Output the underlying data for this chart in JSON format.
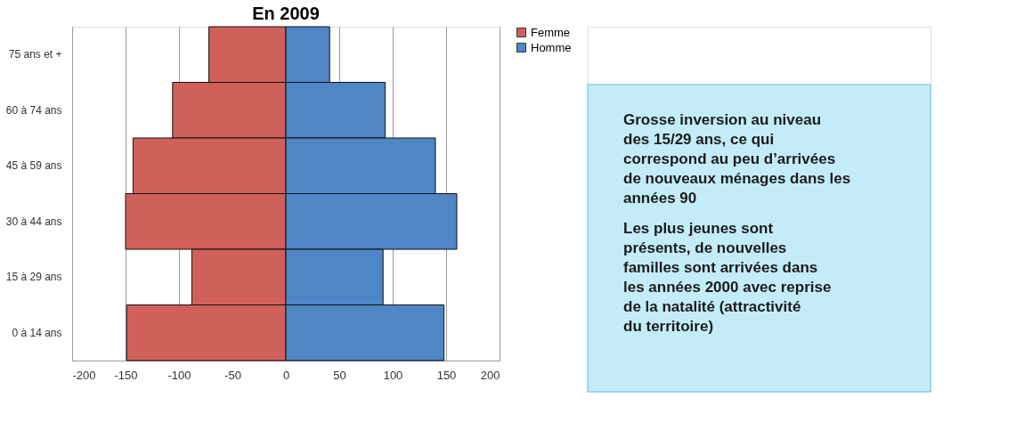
{
  "chart_data": [
    {
      "type": "bar",
      "orientation": "horizontal",
      "stacked": true,
      "title": "En 2009",
      "categories": [
        "75 ans et +",
        "60 à 74 ans",
        "45 à 59 ans",
        "30 à 44 ans",
        "15 à 29 ans",
        "0 à 14 ans"
      ],
      "series": [
        {
          "name": "Femme",
          "color": "#d0605a",
          "values": [
            -72,
            -106,
            -143,
            -150,
            -88,
            -149
          ]
        },
        {
          "name": "Homme",
          "color": "#4f86c6",
          "values": [
            41,
            93,
            140,
            160,
            91,
            148
          ]
        }
      ],
      "xlim": [
        -200,
        200
      ],
      "xticks": [
        -200,
        -150,
        -100,
        -50,
        0,
        50,
        100,
        150,
        200
      ],
      "grid": "x",
      "legend": "right"
    },
    {
      "type": "other",
      "annotations": [
        "Grosse inversion au niveau des 15/29 ans, ce qui correspond au peu d’arrivées de nouveaux ménages dans les années 90",
        "Les plus jeunes sont présents, de nouvelles familles sont arrivées dans les années 2000 avec reprise de la natalité (attractivité du territoire)"
      ]
    }
  ]
}
